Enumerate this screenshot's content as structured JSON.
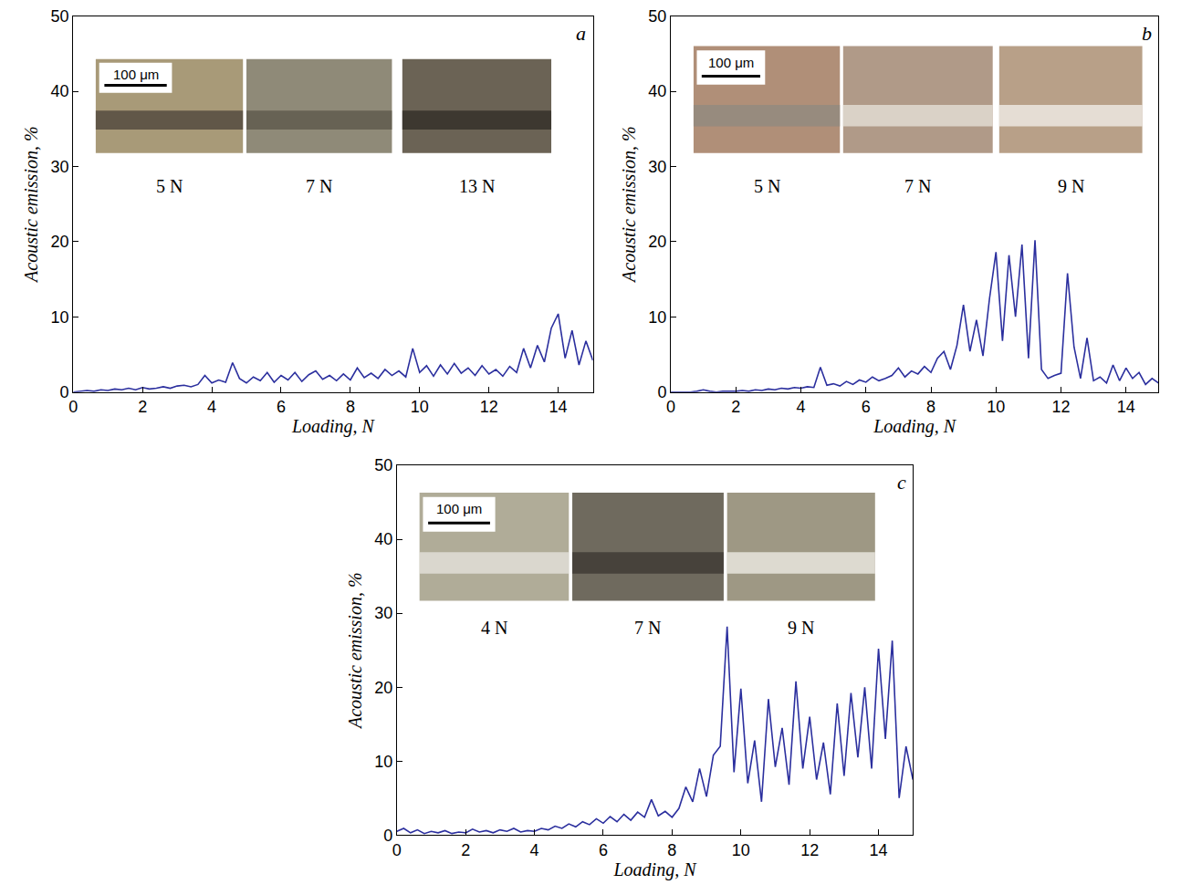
{
  "chart_data": [
    {
      "type": "line",
      "panel": "a",
      "x_label": "Loading, N",
      "y_label": "Acoustic emission, %",
      "color": "#2b2f9e",
      "grid": false,
      "xlim": [
        0,
        15
      ],
      "xticks": [
        0,
        2,
        4,
        6,
        8,
        10,
        12,
        14
      ],
      "ylim": [
        0,
        50
      ],
      "yticks": [
        0,
        10,
        20,
        30,
        40,
        50
      ],
      "insets": [
        "5 N",
        "7 N",
        "13 N"
      ],
      "scale_bar": "100 μm",
      "x": [
        0,
        0.2,
        0.4,
        0.6,
        0.8,
        1,
        1.2,
        1.4,
        1.6,
        1.8,
        2,
        2.2,
        2.4,
        2.6,
        2.8,
        3,
        3.2,
        3.4,
        3.6,
        3.8,
        4,
        4.2,
        4.4,
        4.6,
        4.8,
        5,
        5.2,
        5.4,
        5.6,
        5.8,
        6,
        6.2,
        6.4,
        6.6,
        6.8,
        7,
        7.2,
        7.4,
        7.6,
        7.8,
        8,
        8.2,
        8.4,
        8.6,
        8.8,
        9,
        9.2,
        9.4,
        9.6,
        9.8,
        10,
        10.2,
        10.4,
        10.6,
        10.8,
        11,
        11.2,
        11.4,
        11.6,
        11.8,
        12,
        12.2,
        12.4,
        12.6,
        12.8,
        13,
        13.2,
        13.4,
        13.6,
        13.8,
        14,
        14.2,
        14.4,
        14.6,
        14.8,
        15
      ],
      "values": [
        0,
        0.1,
        0.2,
        0.1,
        0.3,
        0.2,
        0.4,
        0.3,
        0.5,
        0.3,
        0.6,
        0.4,
        0.5,
        0.7,
        0.5,
        0.8,
        0.9,
        0.7,
        1.0,
        2.2,
        1.2,
        1.6,
        1.3,
        3.9,
        1.8,
        1.2,
        2.0,
        1.5,
        2.6,
        1.3,
        2.2,
        1.6,
        2.6,
        1.4,
        2.3,
        2.8,
        1.7,
        2.2,
        1.5,
        2.4,
        1.6,
        3.2,
        1.9,
        2.5,
        1.8,
        3.0,
        2.2,
        2.8,
        2.0,
        5.8,
        2.6,
        3.5,
        2.1,
        3.6,
        2.4,
        3.8,
        2.5,
        3.2,
        2.2,
        3.5,
        2.4,
        3.0,
        2.1,
        3.4,
        2.6,
        5.8,
        3.2,
        6.2,
        4.0,
        8.5,
        10.4,
        4.5,
        8.2,
        3.6,
        6.8,
        4.2
      ]
    },
    {
      "type": "line",
      "panel": "b",
      "x_label": "Loading, N",
      "y_label": "Acoustic emission, %",
      "color": "#2b2f9e",
      "grid": false,
      "xlim": [
        0,
        15
      ],
      "xticks": [
        0,
        2,
        4,
        6,
        8,
        10,
        12,
        14
      ],
      "ylim": [
        0,
        50
      ],
      "yticks": [
        0,
        10,
        20,
        30,
        40,
        50
      ],
      "insets": [
        "5 N",
        "7 N",
        "9 N"
      ],
      "scale_bar": "100 μm",
      "x": [
        0,
        0.2,
        0.4,
        0.6,
        0.8,
        1,
        1.2,
        1.4,
        1.6,
        1.8,
        2,
        2.2,
        2.4,
        2.6,
        2.8,
        3,
        3.2,
        3.4,
        3.6,
        3.8,
        4,
        4.2,
        4.4,
        4.6,
        4.8,
        5,
        5.2,
        5.4,
        5.6,
        5.8,
        6,
        6.2,
        6.4,
        6.6,
        6.8,
        7,
        7.2,
        7.4,
        7.6,
        7.8,
        8,
        8.2,
        8.4,
        8.6,
        8.8,
        9,
        9.2,
        9.4,
        9.6,
        9.8,
        10,
        10.2,
        10.4,
        10.6,
        10.8,
        11,
        11.2,
        11.4,
        11.6,
        11.8,
        12,
        12.2,
        12.4,
        12.6,
        12.8,
        13,
        13.2,
        13.4,
        13.6,
        13.8,
        14,
        14.2,
        14.4,
        14.6,
        14.8,
        15
      ],
      "values": [
        0,
        0,
        0,
        0,
        0.1,
        0.3,
        0.1,
        0,
        0.1,
        0.1,
        0.1,
        0.2,
        0.1,
        0.3,
        0.2,
        0.4,
        0.3,
        0.5,
        0.4,
        0.6,
        0.5,
        0.7,
        0.6,
        3.3,
        0.9,
        1.1,
        0.8,
        1.4,
        1.0,
        1.6,
        1.3,
        2.0,
        1.5,
        1.8,
        2.2,
        3.2,
        2.0,
        2.8,
        2.4,
        3.4,
        2.6,
        4.5,
        5.4,
        3.0,
        6.2,
        11.6,
        5.4,
        9.6,
        4.8,
        12.4,
        18.6,
        6.8,
        18.2,
        10.0,
        19.6,
        4.5,
        20.2,
        3.0,
        1.8,
        2.2,
        2.5,
        15.8,
        6.0,
        1.8,
        7.2,
        1.5,
        2.0,
        1.2,
        3.6,
        1.5,
        3.2,
        1.8,
        2.6,
        1.0,
        1.8,
        1.2
      ]
    },
    {
      "type": "line",
      "panel": "c",
      "x_label": "Loading, N",
      "y_label": "Acoustic emission, %",
      "color": "#2b2f9e",
      "grid": false,
      "xlim": [
        0,
        15
      ],
      "xticks": [
        0,
        2,
        4,
        6,
        8,
        10,
        12,
        14
      ],
      "ylim": [
        0,
        50
      ],
      "yticks": [
        0,
        10,
        20,
        30,
        40,
        50
      ],
      "insets": [
        "4 N",
        "7 N",
        "9 N"
      ],
      "scale_bar": "100 μm",
      "x": [
        0,
        0.2,
        0.4,
        0.6,
        0.8,
        1,
        1.2,
        1.4,
        1.6,
        1.8,
        2,
        2.2,
        2.4,
        2.6,
        2.8,
        3,
        3.2,
        3.4,
        3.6,
        3.8,
        4,
        4.2,
        4.4,
        4.6,
        4.8,
        5,
        5.2,
        5.4,
        5.6,
        5.8,
        6,
        6.2,
        6.4,
        6.6,
        6.8,
        7,
        7.2,
        7.4,
        7.6,
        7.8,
        8,
        8.2,
        8.4,
        8.6,
        8.8,
        9,
        9.2,
        9.4,
        9.6,
        9.8,
        10,
        10.2,
        10.4,
        10.6,
        10.8,
        11,
        11.2,
        11.4,
        11.6,
        11.8,
        12,
        12.2,
        12.4,
        12.6,
        12.8,
        13,
        13.2,
        13.4,
        13.6,
        13.8,
        14,
        14.2,
        14.4,
        14.6,
        14.8,
        15
      ],
      "values": [
        0.5,
        0.9,
        0.3,
        0.7,
        0.2,
        0.5,
        0.3,
        0.6,
        0.2,
        0.4,
        0.3,
        0.8,
        0.4,
        0.6,
        0.3,
        0.7,
        0.5,
        0.9,
        0.4,
        0.6,
        0.5,
        0.9,
        0.7,
        1.2,
        0.9,
        1.5,
        1.1,
        1.8,
        1.4,
        2.2,
        1.6,
        2.5,
        1.8,
        2.8,
        2.0,
        3.1,
        2.4,
        4.8,
        2.6,
        3.2,
        2.4,
        3.6,
        6.5,
        4.5,
        9.0,
        5.2,
        10.8,
        12.0,
        28.2,
        8.5,
        19.8,
        7.0,
        12.8,
        4.5,
        18.4,
        9.2,
        14.5,
        6.8,
        20.8,
        9.0,
        16.0,
        7.5,
        12.5,
        5.5,
        17.8,
        8.0,
        19.2,
        10.5,
        20.0,
        9.0,
        25.2,
        13.0,
        26.3,
        5.0,
        12.0,
        7.5
      ]
    }
  ]
}
